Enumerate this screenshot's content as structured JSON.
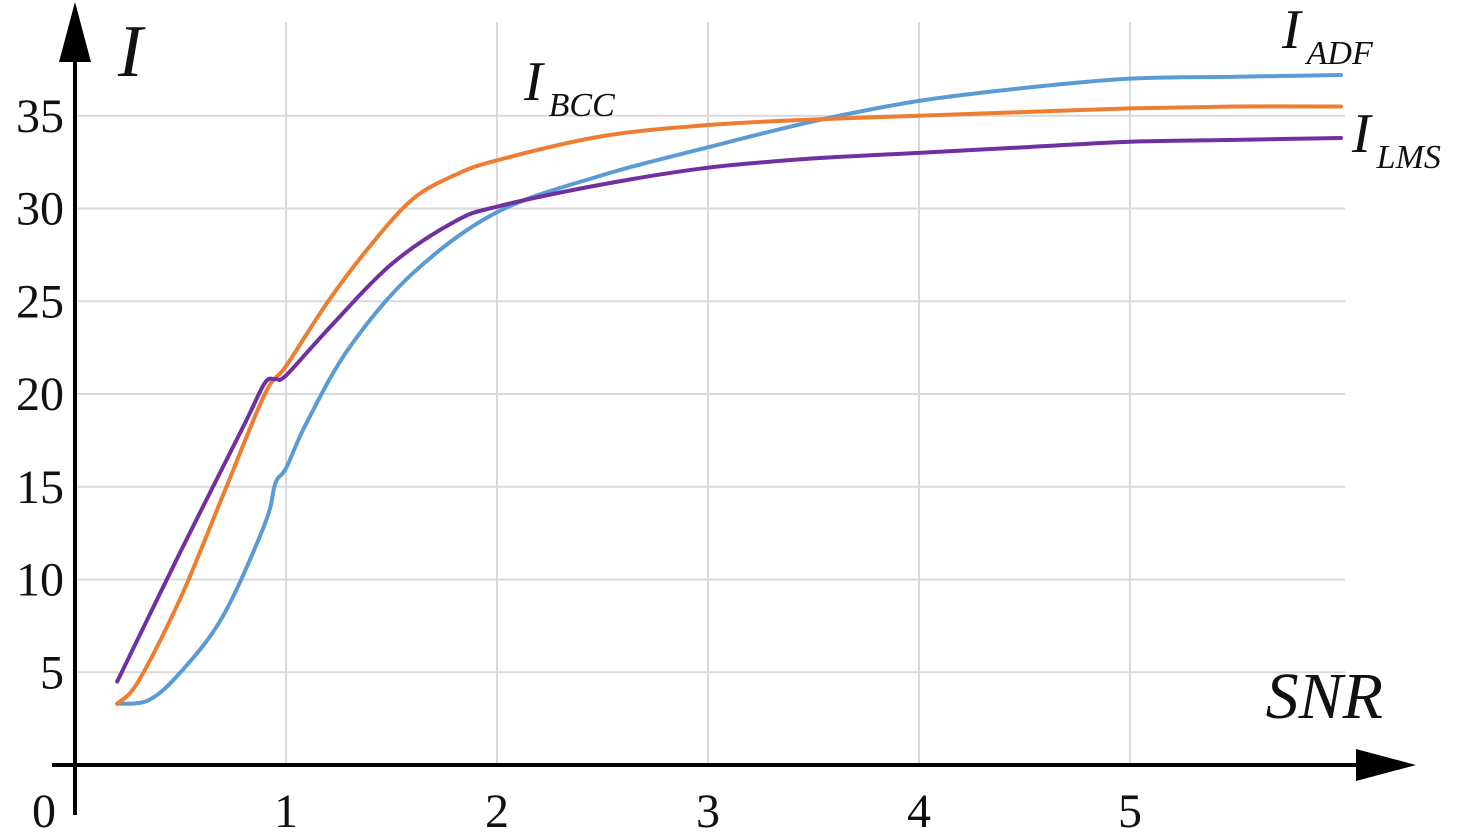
{
  "chart_data": {
    "type": "line",
    "title": "",
    "xlabel": "SNR",
    "ylabel": "I",
    "origin_label": "0",
    "xlim": [
      0,
      6
    ],
    "ylim": [
      0,
      40
    ],
    "x_ticks": [
      "1",
      "2",
      "3",
      "4",
      "5"
    ],
    "y_ticks": [
      "5",
      "10",
      "15",
      "20",
      "25",
      "30",
      "35"
    ],
    "grid": true,
    "legend": "inline labels",
    "series": [
      {
        "name": "ADF",
        "label_main": "I",
        "label_sub": "ADF",
        "color": "#5b9bd5",
        "x": [
          0.2,
          0.35,
          0.5,
          0.7,
          0.9,
          0.95,
          1.0,
          1.1,
          1.3,
          1.6,
          2.0,
          2.5,
          3.0,
          3.5,
          4.0,
          4.5,
          5.0,
          5.5,
          6.0
        ],
        "y": [
          3.3,
          3.5,
          5.0,
          8.0,
          13.0,
          15.2,
          16.0,
          18.5,
          22.5,
          26.5,
          29.8,
          31.8,
          33.3,
          34.7,
          35.8,
          36.5,
          37.0,
          37.1,
          37.2
        ]
      },
      {
        "name": "BCC",
        "label_main": "I",
        "label_sub": "BCC",
        "color": "#ed7d31",
        "x": [
          0.2,
          0.3,
          0.5,
          0.7,
          0.9,
          1.0,
          1.2,
          1.4,
          1.6,
          1.8,
          2.0,
          2.5,
          3.0,
          3.5,
          4.0,
          4.5,
          5.0,
          5.5,
          6.0
        ],
        "y": [
          3.3,
          4.5,
          9.0,
          14.5,
          20.0,
          21.5,
          25.0,
          28.0,
          30.5,
          31.8,
          32.6,
          33.9,
          34.5,
          34.8,
          35.0,
          35.2,
          35.4,
          35.5,
          35.5
        ]
      },
      {
        "name": "LMS",
        "label_main": "I",
        "label_sub": "LMS",
        "color": "#7030a0",
        "x": [
          0.2,
          0.5,
          0.8,
          0.9,
          0.95,
          1.0,
          1.2,
          1.5,
          1.8,
          2.0,
          2.5,
          3.0,
          3.5,
          4.0,
          4.5,
          5.0,
          5.5,
          6.0
        ],
        "y": [
          4.5,
          11.5,
          18.3,
          20.6,
          20.8,
          21.0,
          23.5,
          27.0,
          29.3,
          30.1,
          31.3,
          32.2,
          32.7,
          33.0,
          33.3,
          33.6,
          33.7,
          33.8
        ]
      }
    ]
  }
}
